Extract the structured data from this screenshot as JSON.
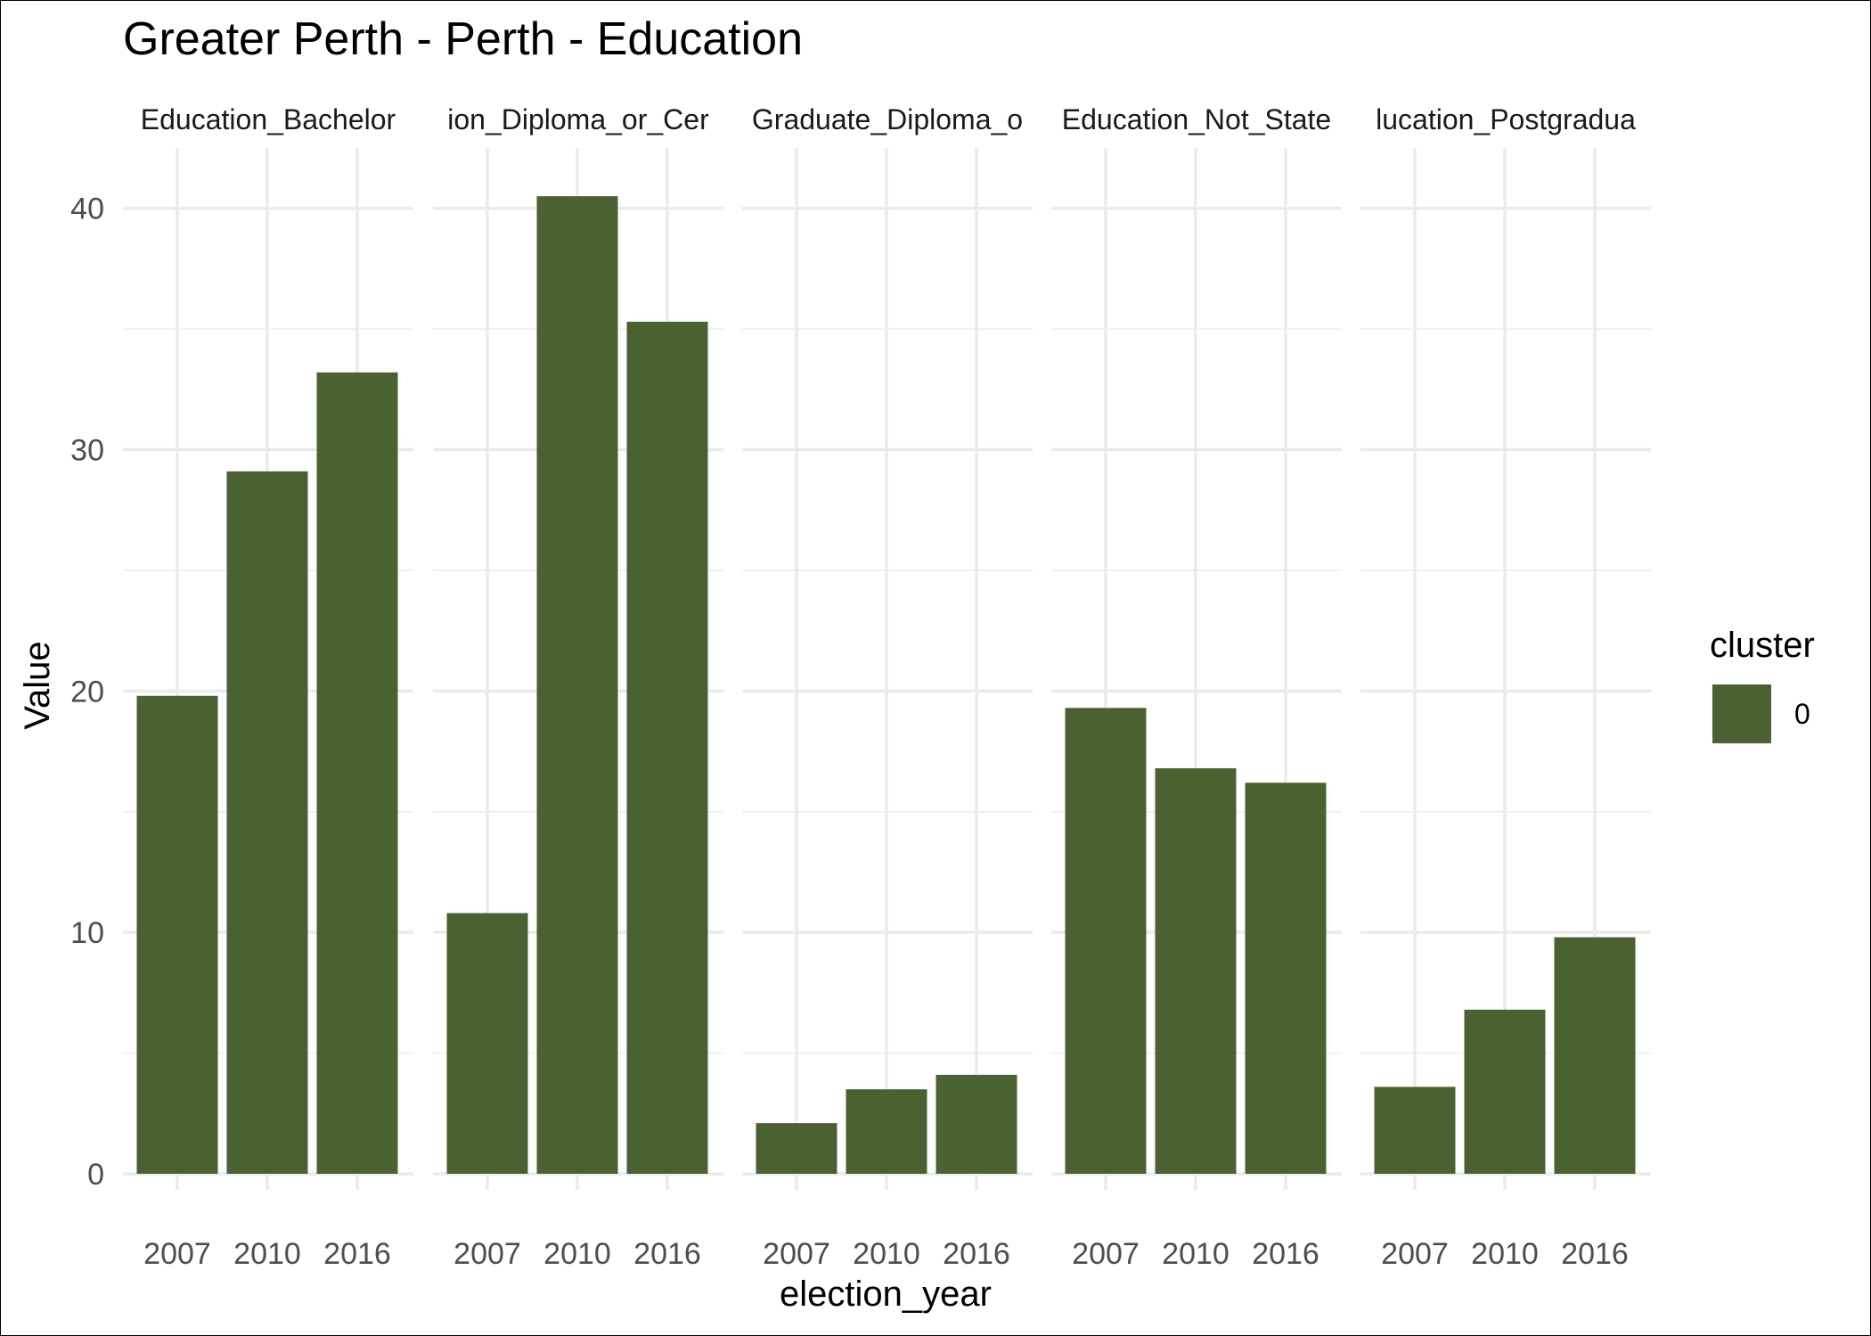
{
  "chart_data": {
    "type": "bar",
    "title": "Greater Perth - Perth - Education",
    "xlabel": "election_year",
    "ylabel": "Value",
    "ylim": [
      0,
      42.5
    ],
    "y_ticks": [
      0,
      10,
      20,
      30,
      40
    ],
    "categories": [
      "2007",
      "2010",
      "2016"
    ],
    "grid": true,
    "facets": [
      {
        "label": "Education_Bachelor",
        "values": [
          19.8,
          29.1,
          33.2
        ]
      },
      {
        "label": "ion_Diploma_or_Cer",
        "values": [
          10.8,
          40.5,
          35.3
        ]
      },
      {
        "label": "Graduate_Diploma_o",
        "values": [
          2.1,
          3.5,
          4.1
        ]
      },
      {
        "label": "Education_Not_State",
        "values": [
          19.3,
          16.8,
          16.2
        ]
      },
      {
        "label": "lucation_Postgradua",
        "values": [
          3.6,
          6.8,
          9.8
        ]
      }
    ],
    "legend": {
      "title": "cluster",
      "placement": "right",
      "entries": [
        {
          "label": "0",
          "color": "#4a6132"
        }
      ]
    },
    "bar_color": "#4a6132"
  }
}
